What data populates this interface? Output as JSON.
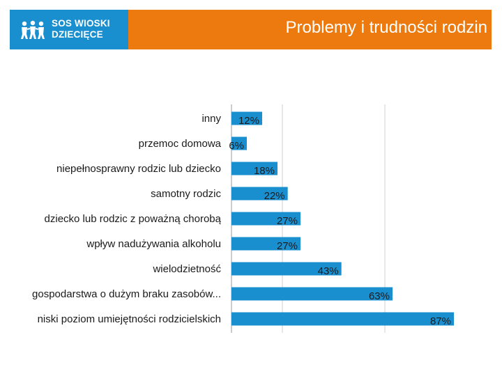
{
  "header": {
    "logo_line1": "SOS WIOSKI",
    "logo_line2": "DZIECIĘCE",
    "title": "Problemy i trudności rodzin"
  },
  "colors": {
    "logo_bg": "#1a8fd0",
    "header_bar": "#ec7a0e",
    "bar": "#1a8fd0"
  },
  "chart_data": {
    "type": "bar",
    "orientation": "horizontal",
    "categories": [
      "inny",
      "przemoc domowa",
      "niepełnosprawny rodzic lub dziecko",
      "samotny rodzic",
      "dziecko lub rodzic z poważną chorobą",
      "wpływ nadużywania alkoholu",
      "wielodzietność",
      "gospodarstwa o dużym braku zasobów...",
      "niski poziom umiejętności rodzicielskich"
    ],
    "values": [
      12,
      6,
      18,
      22,
      27,
      27,
      43,
      63,
      87
    ],
    "value_labels": [
      "12%",
      "6%",
      "18%",
      "22%",
      "27%",
      "27%",
      "43%",
      "63%",
      "87%"
    ],
    "xlim": [
      0,
      87
    ],
    "grid": true
  }
}
